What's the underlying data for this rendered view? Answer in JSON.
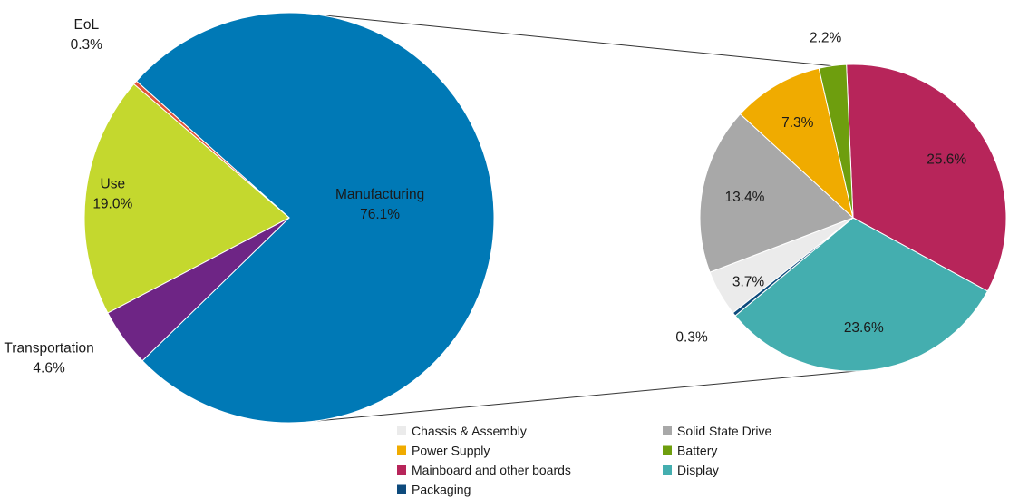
{
  "chart_data": [
    {
      "type": "pie",
      "slices": [
        {
          "name": "Manufacturing",
          "value": 76.1,
          "label": "76.1%",
          "color": "#0079B6"
        },
        {
          "name": "Transportation",
          "value": 4.6,
          "label": "4.6%",
          "color": "#6E2585"
        },
        {
          "name": "Use",
          "value": 19.0,
          "label": "19.0%",
          "color": "#C4D82E"
        },
        {
          "name": "EoL",
          "value": 0.3,
          "label": "0.3%",
          "color": "#E0533A"
        }
      ],
      "exploded_slice": "Manufacturing"
    },
    {
      "type": "pie",
      "slices": [
        {
          "name": "Mainboard and other boards",
          "value": 25.6,
          "label": "25.6%",
          "color": "#B7255A"
        },
        {
          "name": "Display",
          "value": 23.6,
          "label": "23.6%",
          "color": "#44AEAF"
        },
        {
          "name": "Packaging",
          "value": 0.3,
          "label": "0.3%",
          "color": "#0D4A7C"
        },
        {
          "name": "Chassis & Assembly",
          "value": 3.7,
          "label": "3.7%",
          "color": "#EBEBEB"
        },
        {
          "name": "Solid State Drive",
          "value": 13.4,
          "label": "13.4%",
          "color": "#A8A8A8"
        },
        {
          "name": "Power Supply",
          "value": 7.3,
          "label": "7.3%",
          "color": "#F0AB00"
        },
        {
          "name": "Battery",
          "value": 2.2,
          "label": "2.2%",
          "color": "#6E9E0E"
        }
      ]
    }
  ],
  "legend": [
    {
      "name": "Chassis & Assembly",
      "color": "#EBEBEB"
    },
    {
      "name": "Solid State Drive",
      "color": "#A8A8A8"
    },
    {
      "name": "Power Supply",
      "color": "#F0AB00"
    },
    {
      "name": "Battery",
      "color": "#6E9E0E"
    },
    {
      "name": "Mainboard and other boards",
      "color": "#B7255A"
    },
    {
      "name": "Display",
      "color": "#44AEAF"
    },
    {
      "name": "Packaging",
      "color": "#0D4A7C"
    }
  ],
  "legend_position": "bottom"
}
